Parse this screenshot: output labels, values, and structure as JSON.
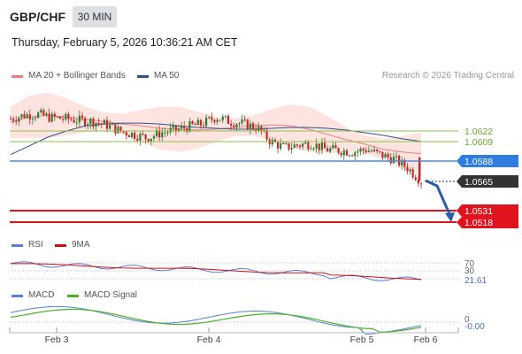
{
  "header": {
    "symbol": "GBP/CHF",
    "timeframe": "30 MIN",
    "datetime": "Thursday, February 5, 2026 10:36:21 AM CET"
  },
  "legend": {
    "ma20": "MA 20 + Bollinger Bands",
    "ma50": "MA 50",
    "copyright": "Research © 2026 Trading Central"
  },
  "colors": {
    "ma20": "#f08080",
    "ma50": "#2f4f8f",
    "band_fill": "#fde4e0",
    "up": "#2e7d32",
    "down": "#c62828",
    "support": "#e0141e",
    "pivot": "#4a88e0",
    "resistance": "#8bc34a",
    "rsi": "#5b7fd6",
    "rsi_ma": "#d01010",
    "macd": "#5b7fd6",
    "macd_signal": "#4caf28"
  },
  "levels": {
    "resistance": [
      "1.0622",
      "1.0609"
    ],
    "pivot": "1.0588",
    "current": "1.0565",
    "support": [
      "1.0531",
      "1.0518"
    ]
  },
  "rsi_panel": {
    "label": "RSI",
    "ma_label": "9MA",
    "level_label": "70",
    "level_label_2": "30",
    "value": "21.61"
  },
  "macd_panel": {
    "label": "MACD",
    "signal_label": "MACD Signal",
    "zero_label": "0",
    "value": "-0.00"
  },
  "x_axis": {
    "ticks": [
      "Feb 3",
      "Feb 4",
      "Feb 5",
      "Feb 6"
    ]
  },
  "chart_data": {
    "type": "line",
    "xlabel": "",
    "ylabel": "",
    "x_ticks": [
      "Feb 3",
      "Feb 4",
      "Feb 5",
      "Feb 6"
    ],
    "y_range": [
      1.0505,
      1.066
    ],
    "series": [
      {
        "name": "MA 20 + Bollinger Bands",
        "values": [
          1.0632,
          1.0638,
          1.064,
          1.0638,
          1.0635,
          1.0633,
          1.063,
          1.0628,
          1.0625,
          1.0624,
          1.0623,
          1.0624,
          1.0626,
          1.0628,
          1.0629,
          1.0628,
          1.0624,
          1.0618,
          1.0612,
          1.0607,
          1.0601,
          1.0598,
          1.0596
        ]
      },
      {
        "name": "MA 50",
        "values": [
          1.0595,
          1.0605,
          1.0615,
          1.0622,
          1.0628,
          1.063,
          1.0631,
          1.0631,
          1.063,
          1.0628,
          1.0626,
          1.0625,
          1.0624,
          1.0624,
          1.0625,
          1.0626,
          1.0626,
          1.0625,
          1.0623,
          1.062,
          1.0617,
          1.0613,
          1.061
        ]
      }
    ],
    "close": [
      1.0636,
      1.064,
      1.0641,
      1.0637,
      1.0636,
      1.0634,
      1.0633,
      1.0629,
      1.0622,
      1.0618,
      1.0614,
      1.062,
      1.0623,
      1.0627,
      1.063,
      1.0638,
      1.0633,
      1.063,
      1.0626,
      1.061,
      1.0603,
      1.0606,
      1.0608,
      1.0601,
      1.06,
      1.0598,
      1.0601,
      1.0595,
      1.059,
      1.058,
      1.0565
    ]
  }
}
